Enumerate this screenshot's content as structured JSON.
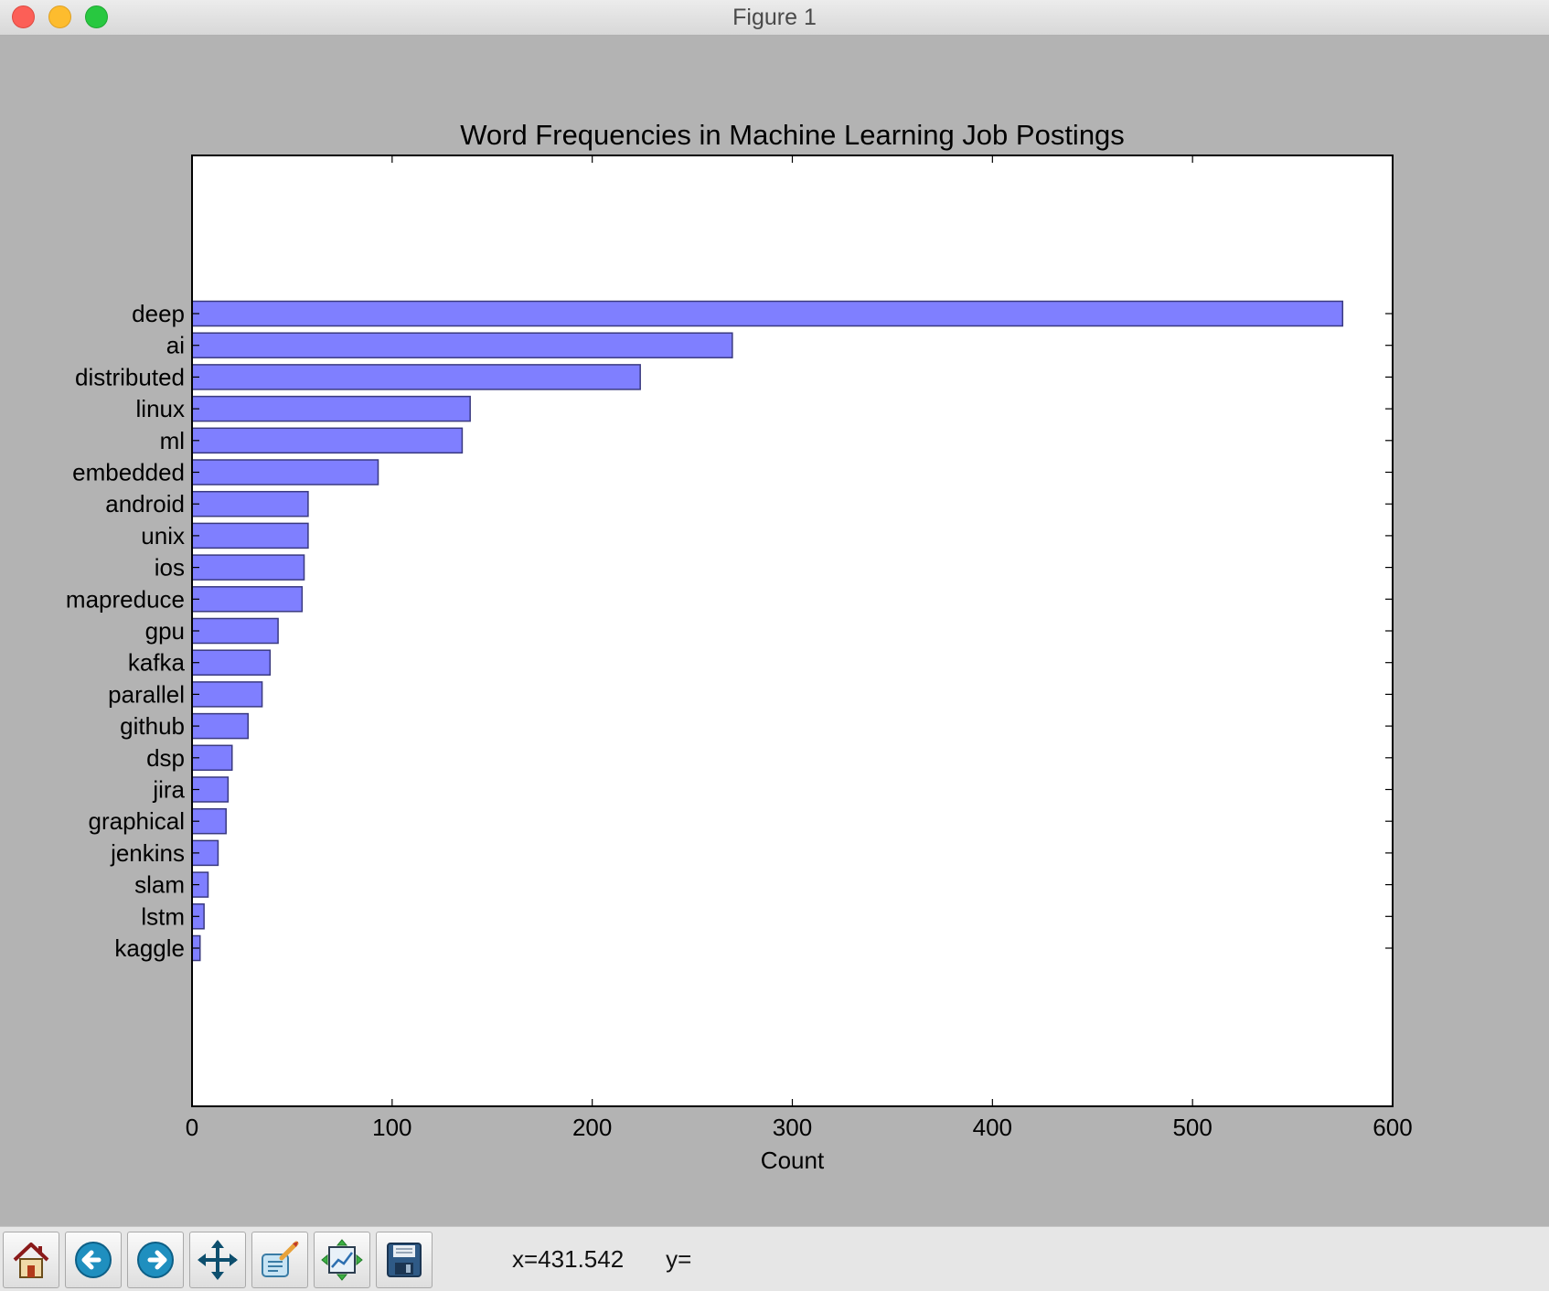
{
  "window": {
    "title": "Figure 1"
  },
  "chart_data": {
    "type": "bar",
    "orientation": "horizontal",
    "title": "Word Frequencies in Machine Learning Job Postings",
    "xlabel": "Count",
    "ylabel": "",
    "xlim": [
      0,
      600
    ],
    "xticks": [
      0,
      100,
      200,
      300,
      400,
      500,
      600
    ],
    "categories": [
      "deep",
      "ai",
      "distributed",
      "linux",
      "ml",
      "embedded",
      "android",
      "unix",
      "ios",
      "mapreduce",
      "gpu",
      "kafka",
      "parallel",
      "github",
      "dsp",
      "jira",
      "graphical",
      "jenkins",
      "slam",
      "lstm",
      "kaggle"
    ],
    "values": [
      575,
      270,
      224,
      139,
      135,
      93,
      58,
      58,
      56,
      55,
      43,
      39,
      35,
      28,
      20,
      18,
      17,
      13,
      8,
      6,
      4
    ],
    "bar_color": "#7f7fff",
    "edge_color": "#3a3a80",
    "grid": false
  },
  "toolbar": {
    "buttons": [
      {
        "name": "home-button",
        "icon": "home-icon"
      },
      {
        "name": "back-button",
        "icon": "back-arrow-icon"
      },
      {
        "name": "forward-button",
        "icon": "forward-arrow-icon"
      },
      {
        "name": "pan-button",
        "icon": "move-icon"
      },
      {
        "name": "zoom-button",
        "icon": "zoom-rect-icon"
      },
      {
        "name": "configure-subplots-button",
        "icon": "subplots-icon"
      },
      {
        "name": "save-button",
        "icon": "save-icon"
      }
    ],
    "coord_x": "x=431.542",
    "coord_y": "y="
  }
}
